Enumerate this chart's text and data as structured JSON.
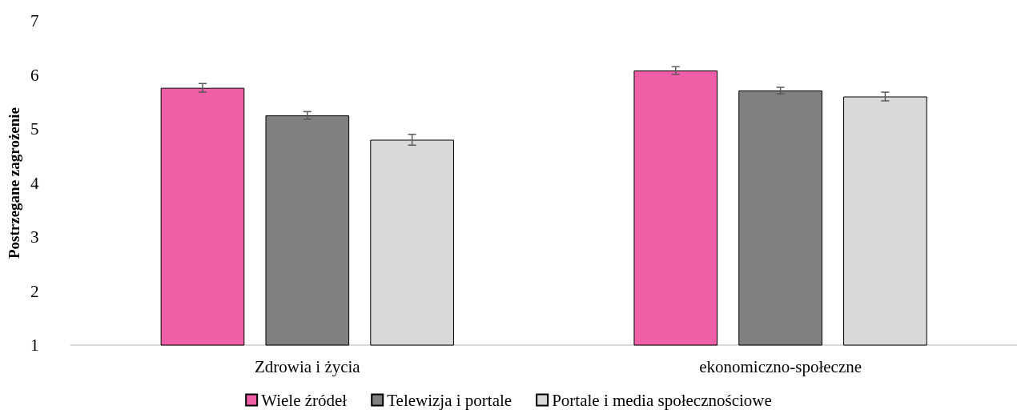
{
  "chart_data": {
    "type": "bar",
    "ylabel": "Postrzegane zagrożenie",
    "categories": [
      "Zdrowia i życia",
      "ekonomiczno-społeczne"
    ],
    "series": [
      {
        "name": "Wiele źródeł",
        "color": "#ef5fa7",
        "values": [
          5.76,
          6.08
        ],
        "errors": [
          0.08,
          0.07
        ]
      },
      {
        "name": "Telewizja i portale",
        "color": "#808080",
        "values": [
          5.25,
          5.71
        ],
        "errors": [
          0.07,
          0.06
        ]
      },
      {
        "name": "Portale i media społecznościowe",
        "color": "#d9d9d9",
        "values": [
          4.8,
          5.6
        ],
        "errors": [
          0.1,
          0.08
        ]
      }
    ],
    "ylim": [
      1,
      7
    ],
    "yticks": [
      1,
      2,
      3,
      4,
      5,
      6,
      7
    ],
    "grid": false,
    "legend": "bottom"
  }
}
